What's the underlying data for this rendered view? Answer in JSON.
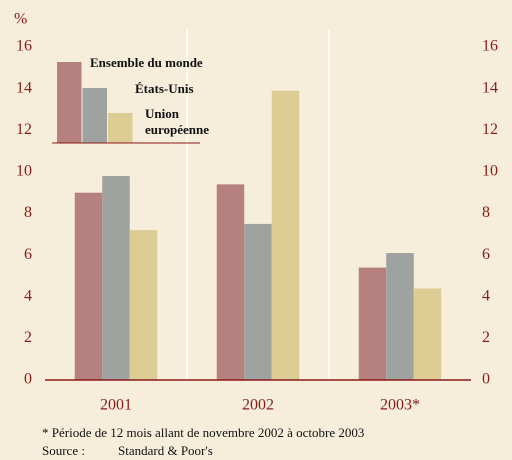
{
  "chart_data": {
    "type": "bar",
    "y_unit": "%",
    "categories": [
      "2001",
      "2002",
      "2003*"
    ],
    "series": [
      {
        "name": "Ensemble du monde",
        "color": "#b5807e",
        "values": [
          9.0,
          9.4,
          5.4
        ]
      },
      {
        "name": "États-Unis",
        "color": "#9ea3a0",
        "values": [
          9.8,
          7.5,
          6.1
        ]
      },
      {
        "name": "Union européenne",
        "color": "#ddcc94",
        "values": [
          7.2,
          13.9,
          4.4
        ]
      }
    ],
    "ylim": [
      0,
      16
    ],
    "yticks": [
      0,
      2,
      4,
      6,
      8,
      10,
      12,
      14,
      16
    ],
    "footnote": "* Période de 12 mois allant de novembre 2002 à octobre 2003",
    "source_label": "Source :",
    "source": "Standard & Poor's"
  }
}
